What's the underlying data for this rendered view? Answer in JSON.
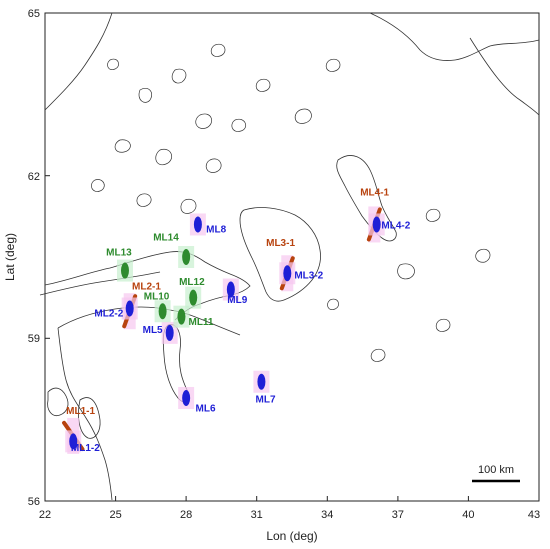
{
  "map": {
    "x_axis_title": "Lon (deg)",
    "y_axis_title": "Lat (deg)",
    "x_range": [
      22,
      43
    ],
    "y_range": [
      56,
      65
    ],
    "x_ticks": [
      "22",
      "25",
      "28",
      "31",
      "34",
      "37",
      "40",
      "43"
    ],
    "y_ticks": [
      "56",
      "59",
      "62",
      "65"
    ],
    "scale_bar_label": "100 km",
    "colors": {
      "blue": "#1f1fd6",
      "green": "#2e8b2e",
      "red": "#b8430f",
      "halo_pink": "#f7c8ef",
      "halo_green": "#c8f0cf"
    }
  },
  "sites": [
    {
      "label": "ML1-1",
      "color": "red",
      "lon": 23.2,
      "lat": 57.2,
      "label_lon": 22.9,
      "label_lat": 57.6
    },
    {
      "label": "ML1-2",
      "color": "blue",
      "lon": 23.2,
      "lat": 57.1,
      "label_lon": 23.1,
      "label_lat": 56.92
    },
    {
      "label": "ML2-1",
      "color": "red",
      "lon": 25.6,
      "lat": 59.5,
      "label_lon": 25.7,
      "label_lat": 59.9
    },
    {
      "label": "ML2-2",
      "color": "blue",
      "lon": 25.6,
      "lat": 59.55,
      "label_lon": 24.1,
      "label_lat": 59.4
    },
    {
      "label": "ML3-1",
      "color": "red",
      "lon": 32.3,
      "lat": 60.2,
      "label_lon": 31.4,
      "label_lat": 60.7
    },
    {
      "label": "ML3-2",
      "color": "blue",
      "lon": 32.3,
      "lat": 60.2,
      "label_lon": 32.6,
      "label_lat": 60.1
    },
    {
      "label": "ML4-1",
      "color": "red",
      "lon": 36.0,
      "lat": 61.1,
      "label_lon": 35.4,
      "label_lat": 61.63
    },
    {
      "label": "ML4-2",
      "color": "blue",
      "lon": 36.1,
      "lat": 61.1,
      "label_lon": 36.3,
      "label_lat": 61.03
    },
    {
      "label": "ML5",
      "color": "blue",
      "lon": 27.3,
      "lat": 59.1,
      "label_lon": 26.15,
      "label_lat": 59.1
    },
    {
      "label": "ML6",
      "color": "blue",
      "lon": 28.0,
      "lat": 57.9,
      "label_lon": 28.4,
      "label_lat": 57.65
    },
    {
      "label": "ML7",
      "color": "blue",
      "lon": 31.2,
      "lat": 58.2,
      "label_lon": 30.95,
      "label_lat": 57.82
    },
    {
      "label": "ML8",
      "color": "blue",
      "lon": 28.5,
      "lat": 61.1,
      "label_lon": 28.85,
      "label_lat": 60.95
    },
    {
      "label": "ML9",
      "color": "blue",
      "lon": 29.9,
      "lat": 59.9,
      "label_lon": 29.75,
      "label_lat": 59.65
    },
    {
      "label": "ML10",
      "color": "green",
      "lon": 27.0,
      "lat": 59.5,
      "label_lon": 26.2,
      "label_lat": 59.72
    },
    {
      "label": "ML11",
      "color": "green",
      "lon": 27.8,
      "lat": 59.4,
      "label_lon": 28.1,
      "label_lat": 59.25
    },
    {
      "label": "ML12",
      "color": "green",
      "lon": 28.3,
      "lat": 59.75,
      "label_lon": 27.7,
      "label_lat": 59.98
    },
    {
      "label": "ML13",
      "color": "green",
      "lon": 25.4,
      "lat": 60.25,
      "label_lon": 24.6,
      "label_lat": 60.53
    },
    {
      "label": "ML14",
      "color": "green",
      "lon": 28.0,
      "lat": 60.5,
      "label_lon": 26.6,
      "label_lat": 60.8
    }
  ]
}
